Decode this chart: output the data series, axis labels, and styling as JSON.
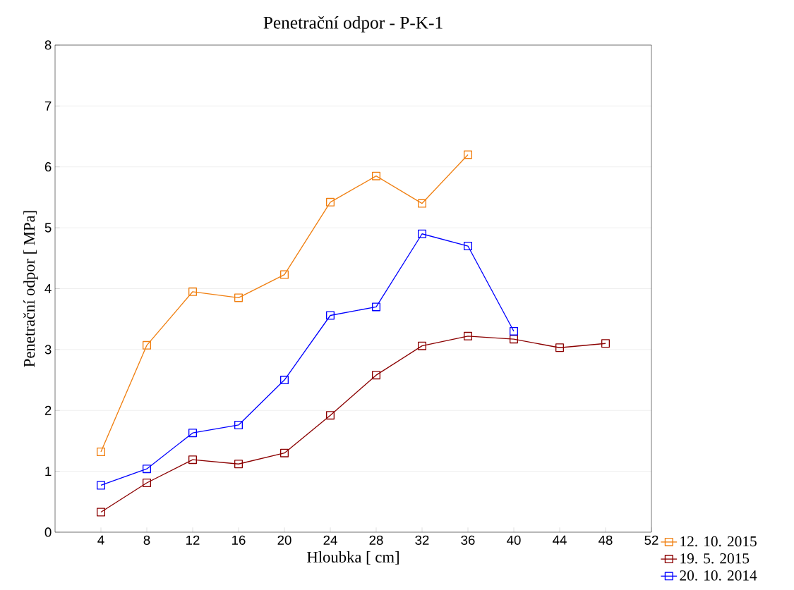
{
  "chart_data": {
    "type": "line",
    "title": "Penetrační odpor - P-K-1",
    "xlabel": "Hloubka [ cm]",
    "ylabel": "Penetrační odpor [ MPa]",
    "xlim": [
      0,
      52
    ],
    "xticks": [
      4,
      8,
      12,
      16,
      20,
      24,
      28,
      32,
      36,
      40,
      44,
      48,
      52
    ],
    "ylim": [
      0,
      8
    ],
    "yticks": [
      0,
      1,
      2,
      3,
      4,
      5,
      6,
      7,
      8
    ],
    "grid": "y",
    "legend": "bottom right",
    "marker": "square",
    "line_style": "solid",
    "series": [
      {
        "name": "12. 10. 2015",
        "color": "#f07f10",
        "x": [
          4,
          8,
          12,
          16,
          20,
          24,
          28,
          32,
          36
        ],
        "values": [
          1.32,
          3.07,
          3.95,
          3.85,
          4.23,
          5.42,
          5.85,
          5.4,
          6.2
        ]
      },
      {
        "name": "19. 5. 2015",
        "color": "#8b0000",
        "x": [
          4,
          8,
          12,
          16,
          20,
          24,
          28,
          32,
          36,
          40,
          44,
          48
        ],
        "values": [
          0.33,
          0.81,
          1.19,
          1.12,
          1.3,
          1.92,
          2.58,
          3.06,
          3.22,
          3.17,
          3.03,
          3.1
        ]
      },
      {
        "name": "20. 10. 2014",
        "color": "#0000ff",
        "x": [
          4,
          8,
          12,
          16,
          20,
          24,
          28,
          32,
          36,
          40
        ],
        "values": [
          0.77,
          1.04,
          1.63,
          1.76,
          2.5,
          3.56,
          3.7,
          4.9,
          4.7,
          3.3
        ]
      }
    ]
  }
}
